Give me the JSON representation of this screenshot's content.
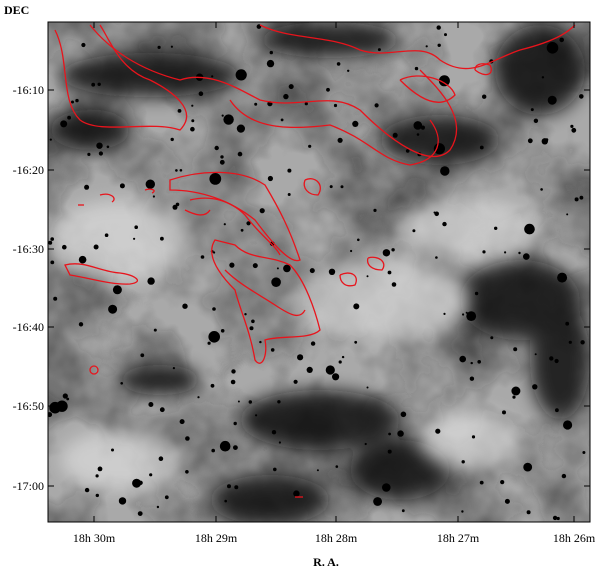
{
  "figure": {
    "y_axis_label": "DEC",
    "x_axis_label": "R. A.",
    "y_ticks": [
      "-16:10",
      "-16:20",
      "-16:30",
      "-16:40",
      "-16:50",
      "-17:00"
    ],
    "x_ticks": [
      "18h 30m",
      "18h 29m",
      "18h 28m",
      "18h 27m",
      "18h 26m"
    ]
  }
}
